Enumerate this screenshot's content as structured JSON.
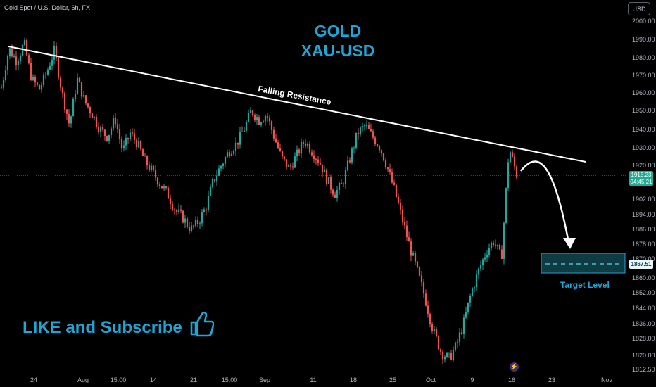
{
  "header": {
    "symbol": "Gold Spot / U.S. Dollar, 6h, FX",
    "currency": "USD"
  },
  "annotations": {
    "title_line1": "GOLD",
    "title_line2": "XAU-USD",
    "resistance": "Falling Resistance",
    "target": "Target Level",
    "subscribe": "LIKE and Subscribe",
    "thumb_icon": "thumbs-up-icon",
    "flash_icon": "lightning-icon"
  },
  "price_labels": {
    "current_price": "1915.23",
    "countdown": "04:45:21",
    "target_price": "1867.51"
  },
  "colors": {
    "up": "#26a69a",
    "down": "#ef5350",
    "accent": "#1ea7d6",
    "line": "#ffffff"
  },
  "chart_data": {
    "type": "candlestick",
    "y_ticks": [
      2000.0,
      1990.0,
      1980.0,
      1970.0,
      1960.0,
      1950.0,
      1940.0,
      1930.0,
      1920.0,
      1902.0,
      1894.0,
      1886.0,
      1878.0,
      1870.0,
      1860.0,
      1852.0,
      1844.0,
      1836.0,
      1828.0,
      1820.0,
      1812.5
    ],
    "x_ticks": [
      "24",
      "Aug",
      "15:00",
      "14",
      "21",
      "15:00",
      "Sep",
      "11",
      "18",
      "25",
      "Oct",
      "9",
      "16",
      "23",
      "Nov"
    ],
    "close_path": [
      1963,
      1985,
      1978,
      1988,
      1968,
      1962,
      1972,
      1984,
      1960,
      1942,
      1968,
      1955,
      1948,
      1940,
      1936,
      1946,
      1928,
      1938,
      1932,
      1922,
      1916,
      1910,
      1904,
      1896,
      1892,
      1886,
      1890,
      1898,
      1912,
      1920,
      1928,
      1932,
      1940,
      1950,
      1945,
      1948,
      1936,
      1924,
      1918,
      1926,
      1934,
      1928,
      1922,
      1912,
      1905,
      1910,
      1924,
      1938,
      1942,
      1936,
      1930,
      1918,
      1905,
      1890,
      1875,
      1862,
      1848,
      1832,
      1822,
      1818,
      1824,
      1836,
      1852,
      1864,
      1874,
      1880,
      1870,
      1930,
      1915
    ],
    "resistance_line": {
      "start": {
        "date": "Jul 20",
        "price": 1988
      },
      "end": {
        "date": "Oct 19",
        "price": 1925
      }
    },
    "target_level": 1867.51,
    "current_price": 1915.23
  }
}
